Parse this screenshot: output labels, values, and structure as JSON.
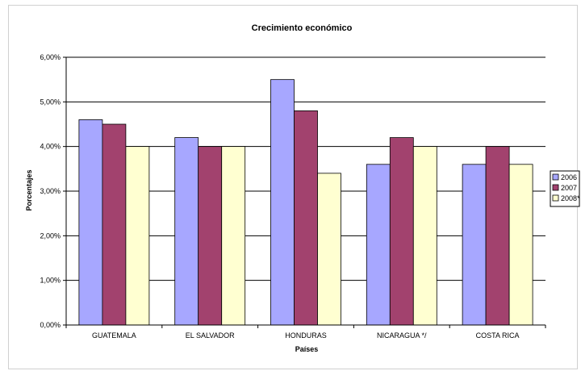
{
  "chart_data": {
    "type": "bar",
    "title": "Crecimiento económico",
    "xlabel": "Países",
    "ylabel": "Porcentajes",
    "categories": [
      "GUATEMALA",
      "EL SALVADOR",
      "HONDURAS",
      "NICARAGUA  */",
      "COSTA RICA"
    ],
    "series": [
      {
        "name": "2006",
        "values": [
          4.6,
          4.2,
          5.5,
          3.6,
          3.6
        ],
        "color": "#A7A7FF"
      },
      {
        "name": "2007",
        "values": [
          4.5,
          4.0,
          4.8,
          4.2,
          4.0
        ],
        "color": "#A2426E"
      },
      {
        "name": "2008*",
        "values": [
          4.0,
          4.0,
          3.4,
          4.0,
          3.6
        ],
        "color": "#FFFFD1"
      }
    ],
    "yticks": [
      "0,00%",
      "1,00%",
      "2,00%",
      "3,00%",
      "4,00%",
      "5,00%",
      "6,00%"
    ],
    "ylim": [
      0,
      6
    ],
    "grid": true,
    "legend": "right"
  }
}
